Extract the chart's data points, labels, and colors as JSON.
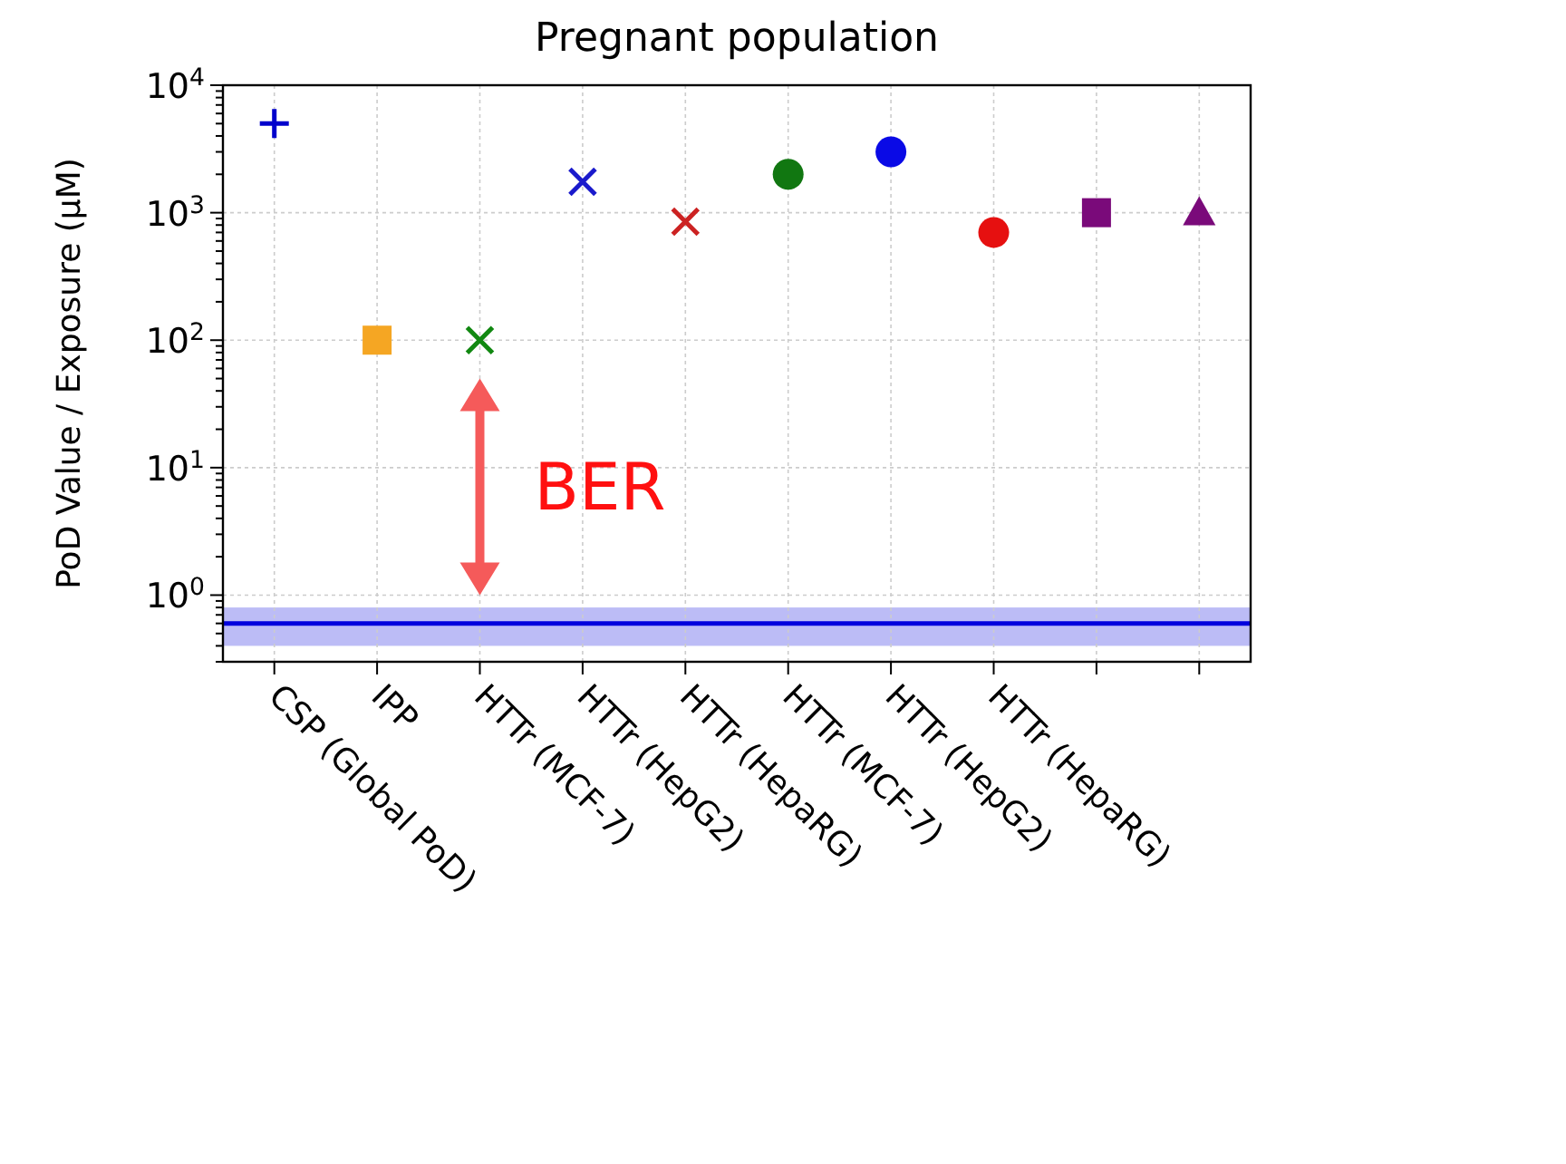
{
  "chart_data": {
    "type": "scatter",
    "title": "Pregnant population",
    "ylabel": "PoD Value / Exposure (µM)",
    "categories": [
      "CSP (Global PoD)",
      "IPP",
      "HTTr (MCF-7)",
      "HTTr (HepG2)",
      "HTTr (HepaRG)",
      "HTTr (MCF-7)",
      "HTTr (HepG2)",
      "HTTr (HepaRG)",
      null,
      null
    ],
    "series": [
      {
        "color": "#0000cc",
        "marker": "plus",
        "values": [
          5000,
          null,
          null,
          null,
          null,
          null,
          null,
          null,
          null,
          null
        ]
      },
      {
        "color": "#f5a623",
        "marker": "square",
        "values": [
          null,
          100,
          null,
          null,
          null,
          null,
          null,
          null,
          null,
          null
        ]
      },
      {
        "color": "#118811",
        "marker": "cross",
        "values": [
          null,
          null,
          100,
          null,
          null,
          null,
          null,
          null,
          null,
          null
        ]
      },
      {
        "color": "#1a1acc",
        "marker": "cross",
        "values": [
          null,
          null,
          null,
          1750,
          null,
          null,
          null,
          null,
          null,
          null
        ]
      },
      {
        "color": "#cc2222",
        "marker": "cross",
        "values": [
          null,
          null,
          null,
          null,
          850,
          null,
          null,
          null,
          null,
          null
        ]
      },
      {
        "color": "#117711",
        "marker": "circle",
        "values": [
          null,
          null,
          null,
          null,
          null,
          2000,
          null,
          null,
          null,
          null
        ]
      },
      {
        "color": "#0a0ae6",
        "marker": "circle",
        "values": [
          null,
          null,
          null,
          null,
          null,
          null,
          3000,
          null,
          null,
          null
        ]
      },
      {
        "color": "#e61010",
        "marker": "circle",
        "values": [
          null,
          null,
          null,
          null,
          null,
          null,
          null,
          700,
          null,
          null
        ]
      },
      {
        "color": "#7a0a7a",
        "marker": "square",
        "values": [
          null,
          null,
          null,
          null,
          null,
          null,
          null,
          null,
          1000,
          null
        ]
      },
      {
        "color": "#7a0a7a",
        "marker": "triangle",
        "values": [
          null,
          null,
          null,
          null,
          null,
          null,
          null,
          null,
          null,
          1000
        ]
      }
    ],
    "log": "y",
    "ylim": [
      0.3,
      10000
    ],
    "yticks": [
      {
        "value": 1,
        "label": "10$^{0}$"
      },
      {
        "value": 10,
        "label": "10$^{1}$"
      },
      {
        "value": 100,
        "label": "10$^{2}$"
      },
      {
        "value": 1000,
        "label": "10$^{3}$"
      },
      {
        "value": 10000,
        "label": "10$^{4}$"
      }
    ],
    "grid": true,
    "ref_lines": [
      {
        "axis": "y",
        "value": 0.6,
        "color": "#0000dd"
      }
    ],
    "bands": [
      {
        "axis": "y",
        "from": 0.4,
        "to": 0.8,
        "color": "#b0b0f4"
      }
    ],
    "annotations": [
      "BER"
    ]
  }
}
